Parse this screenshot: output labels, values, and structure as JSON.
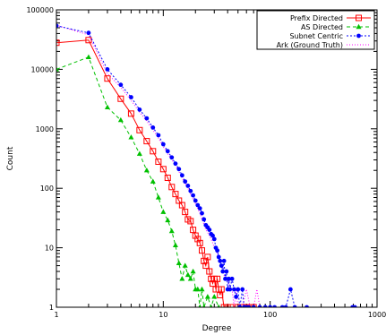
{
  "chart_data": {
    "type": "line",
    "title": "",
    "xlabel": "Degree",
    "ylabel": "Count",
    "xscale": "log",
    "yscale": "log",
    "xlim": [
      1,
      1000
    ],
    "ylim": [
      1,
      100000
    ],
    "grid": false,
    "legend_position": "top-right",
    "x_ticks": [
      {
        "value": 1,
        "label": "1"
      },
      {
        "value": 10,
        "label": "10"
      },
      {
        "value": 100,
        "label": "100"
      },
      {
        "value": 1000,
        "label": "1000"
      }
    ],
    "y_ticks": [
      {
        "value": 1,
        "label": "1"
      },
      {
        "value": 10,
        "label": "10"
      },
      {
        "value": 100,
        "label": "100"
      },
      {
        "value": 1000,
        "label": "1000"
      },
      {
        "value": 10000,
        "label": "10000"
      },
      {
        "value": 100000,
        "label": "100000"
      }
    ],
    "series": [
      {
        "name": "Prefix Directed",
        "color": "#ff0000",
        "marker": "square-open",
        "dash": "",
        "points": [
          [
            1,
            28000
          ],
          [
            2,
            31000
          ],
          [
            3,
            7000
          ],
          [
            4,
            3200
          ],
          [
            5,
            1800
          ],
          [
            6,
            950
          ],
          [
            7,
            620
          ],
          [
            8,
            420
          ],
          [
            9,
            280
          ],
          [
            10,
            210
          ],
          [
            11,
            150
          ],
          [
            12,
            105
          ],
          [
            13,
            80
          ],
          [
            14,
            62
          ],
          [
            15,
            52
          ],
          [
            16,
            40
          ],
          [
            17,
            30
          ],
          [
            18,
            28
          ],
          [
            19,
            20
          ],
          [
            20,
            16
          ],
          [
            21,
            14
          ],
          [
            22,
            12
          ],
          [
            23,
            9
          ],
          [
            24,
            6
          ],
          [
            25,
            5
          ],
          [
            26,
            7
          ],
          [
            27,
            4
          ],
          [
            28,
            3
          ],
          [
            29,
            2.5
          ],
          [
            30,
            3
          ],
          [
            31,
            2
          ],
          [
            32,
            3
          ],
          [
            33,
            2
          ],
          [
            34,
            1.6
          ],
          [
            35,
            2
          ],
          [
            37,
            1
          ],
          [
            40,
            1
          ],
          [
            43,
            1
          ],
          [
            50,
            1
          ],
          [
            55,
            1
          ],
          [
            60,
            1
          ],
          [
            65,
            1
          ],
          [
            70,
            1
          ]
        ]
      },
      {
        "name": "AS Directed",
        "color": "#00c000",
        "marker": "triangle",
        "dash": "4,3",
        "points": [
          [
            1,
            10000
          ],
          [
            2,
            16000
          ],
          [
            3,
            2300
          ],
          [
            4,
            1400
          ],
          [
            5,
            720
          ],
          [
            6,
            380
          ],
          [
            7,
            200
          ],
          [
            8,
            130
          ],
          [
            9,
            70
          ],
          [
            10,
            40
          ],
          [
            11,
            29
          ],
          [
            12,
            19
          ],
          [
            13,
            11
          ],
          [
            14,
            5.5
          ],
          [
            15,
            3
          ],
          [
            16,
            5
          ],
          [
            17,
            3.5
          ],
          [
            18,
            3
          ],
          [
            19,
            4
          ],
          [
            20,
            2
          ],
          [
            21,
            2
          ],
          [
            22,
            1
          ],
          [
            23,
            2
          ],
          [
            24,
            1
          ],
          [
            26,
            1.5
          ],
          [
            28,
            1
          ],
          [
            30,
            1.5
          ],
          [
            33,
            1
          ]
        ]
      },
      {
        "name": "Subnet Centric",
        "color": "#0000ff",
        "marker": "circle",
        "dash": "2,2",
        "points": [
          [
            1,
            54000
          ],
          [
            2,
            41000
          ],
          [
            3,
            10000
          ],
          [
            4,
            5500
          ],
          [
            5,
            3400
          ],
          [
            6,
            2100
          ],
          [
            7,
            1500
          ],
          [
            8,
            1050
          ],
          [
            9,
            780
          ],
          [
            10,
            550
          ],
          [
            11,
            420
          ],
          [
            12,
            330
          ],
          [
            13,
            260
          ],
          [
            14,
            210
          ],
          [
            15,
            165
          ],
          [
            16,
            130
          ],
          [
            17,
            110
          ],
          [
            18,
            90
          ],
          [
            19,
            76
          ],
          [
            20,
            62
          ],
          [
            21,
            52
          ],
          [
            22,
            46
          ],
          [
            23,
            38
          ],
          [
            24,
            30
          ],
          [
            25,
            24
          ],
          [
            26,
            22
          ],
          [
            27,
            20
          ],
          [
            28,
            17
          ],
          [
            29,
            16
          ],
          [
            30,
            14
          ],
          [
            31,
            10
          ],
          [
            32,
            9
          ],
          [
            33,
            7
          ],
          [
            34,
            6
          ],
          [
            35,
            5
          ],
          [
            36,
            4
          ],
          [
            37,
            6
          ],
          [
            38,
            3
          ],
          [
            39,
            4
          ],
          [
            40,
            2
          ],
          [
            41,
            3
          ],
          [
            42,
            2
          ],
          [
            44,
            3
          ],
          [
            46,
            2
          ],
          [
            48,
            1.5
          ],
          [
            50,
            2
          ],
          [
            52,
            1
          ],
          [
            55,
            2
          ],
          [
            57,
            1
          ],
          [
            60,
            1
          ],
          [
            63,
            1
          ],
          [
            70,
            1
          ],
          [
            80,
            1
          ],
          [
            90,
            1
          ],
          [
            100,
            1
          ],
          [
            110,
            1
          ],
          [
            130,
            1
          ],
          [
            140,
            1
          ],
          [
            155,
            2
          ],
          [
            170,
            1
          ],
          [
            220,
            1
          ],
          [
            590,
            1
          ],
          [
            620,
            1
          ]
        ]
      },
      {
        "name": "Ark (Ground Truth)",
        "color": "#ff00ff",
        "marker": "none",
        "dash": "1,2",
        "points": [
          [
            1,
            55000
          ],
          [
            2,
            38000
          ],
          [
            3,
            8500
          ],
          [
            4,
            5000
          ],
          [
            5,
            3000
          ],
          [
            6,
            1900
          ],
          [
            7,
            1350
          ],
          [
            8,
            950
          ],
          [
            9,
            700
          ],
          [
            10,
            500
          ],
          [
            11,
            380
          ],
          [
            12,
            300
          ],
          [
            13,
            240
          ],
          [
            14,
            190
          ],
          [
            15,
            150
          ],
          [
            16,
            120
          ],
          [
            17,
            100
          ],
          [
            18,
            80
          ],
          [
            19,
            65
          ],
          [
            20,
            55
          ],
          [
            21,
            45
          ],
          [
            22,
            38
          ],
          [
            23,
            30
          ],
          [
            24,
            25
          ],
          [
            25,
            20
          ],
          [
            26,
            18
          ],
          [
            27,
            16
          ],
          [
            28,
            14
          ],
          [
            29,
            12
          ],
          [
            30,
            10
          ],
          [
            31,
            9
          ],
          [
            32,
            8
          ],
          [
            33,
            7
          ],
          [
            34,
            6
          ],
          [
            35,
            5
          ],
          [
            36,
            4
          ],
          [
            38,
            3
          ],
          [
            40,
            3
          ],
          [
            42,
            2
          ],
          [
            44,
            2
          ],
          [
            46,
            1
          ],
          [
            48,
            2
          ],
          [
            50,
            1
          ],
          [
            55,
            1
          ],
          [
            60,
            2
          ],
          [
            65,
            1
          ],
          [
            70,
            1
          ],
          [
            75,
            2
          ],
          [
            80,
            1
          ],
          [
            85,
            1
          ],
          [
            90,
            1
          ],
          [
            100,
            1
          ],
          [
            130,
            1
          ],
          [
            200,
            1
          ]
        ]
      }
    ]
  }
}
